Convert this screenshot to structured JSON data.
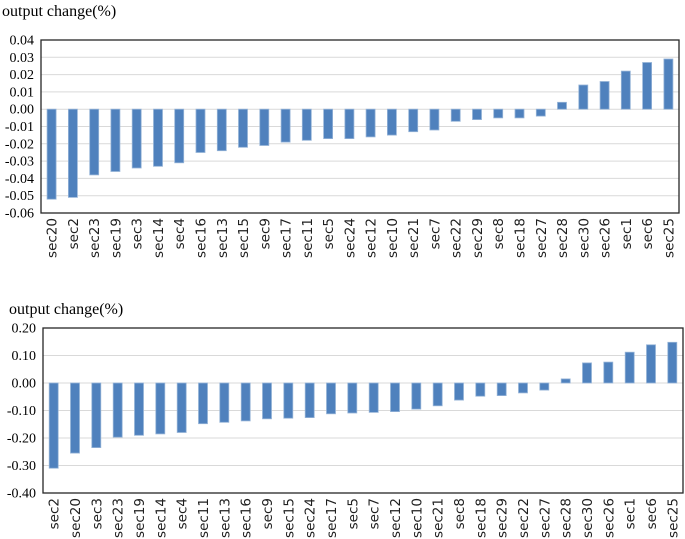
{
  "chart_data": [
    {
      "type": "bar",
      "title": "output change(%)",
      "xlabel": "",
      "ylabel": "output change(%)",
      "ylim": [
        -0.06,
        0.04
      ],
      "ytick_step": 0.01,
      "yticks": [
        "0.04",
        "0.03",
        "0.02",
        "0.01",
        "0.00",
        "-0.01",
        "-0.02",
        "-0.03",
        "-0.04",
        "-0.05",
        "-0.06"
      ],
      "grid": "on",
      "legend": "none",
      "bar_color": "#4F81BD",
      "bar_edge_color": "#95B3D7",
      "grid_color": "#D9D9D9",
      "axis_color": "#262626",
      "categories": [
        "sec20",
        "sec2",
        "sec23",
        "sec19",
        "sec3",
        "sec14",
        "sec4",
        "sec16",
        "sec13",
        "sec15",
        "sec9",
        "sec17",
        "sec11",
        "sec5",
        "sec24",
        "sec12",
        "sec10",
        "sec21",
        "sec7",
        "sec22",
        "sec29",
        "sec8",
        "sec18",
        "sec27",
        "sec28",
        "sec30",
        "sec26",
        "sec1",
        "sec6",
        "sec25"
      ],
      "values": [
        -0.052,
        -0.051,
        -0.038,
        -0.036,
        -0.034,
        -0.033,
        -0.031,
        -0.025,
        -0.024,
        -0.022,
        -0.021,
        -0.019,
        -0.018,
        -0.017,
        -0.017,
        -0.016,
        -0.015,
        -0.013,
        -0.012,
        -0.007,
        -0.006,
        -0.005,
        -0.005,
        -0.004,
        0.004,
        0.014,
        0.016,
        0.022,
        0.027,
        0.029
      ]
    },
    {
      "type": "bar",
      "title": "output change(%)",
      "xlabel": "",
      "ylabel": "output change(%)",
      "ylim": [
        -0.4,
        0.2
      ],
      "ytick_step": 0.1,
      "yticks": [
        "0.20",
        "0.10",
        "0.00",
        "-0.10",
        "-0.20",
        "-0.30",
        "-0.40"
      ],
      "grid": "on",
      "legend": "none",
      "bar_color": "#4F81BD",
      "bar_edge_color": "#95B3D7",
      "grid_color": "#D9D9D9",
      "axis_color": "#262626",
      "categories": [
        "sec2",
        "sec20",
        "sec3",
        "sec23",
        "sec19",
        "sec14",
        "sec4",
        "sec11",
        "sec13",
        "sec16",
        "sec9",
        "sec15",
        "sec24",
        "sec17",
        "sec5",
        "sec7",
        "sec12",
        "sec10",
        "sec21",
        "sec8",
        "sec18",
        "sec29",
        "sec22",
        "sec27",
        "sec28",
        "sec30",
        "sec26",
        "sec1",
        "sec6",
        "sec25"
      ],
      "values": [
        -0.31,
        -0.255,
        -0.235,
        -0.197,
        -0.19,
        -0.185,
        -0.18,
        -0.148,
        -0.143,
        -0.138,
        -0.13,
        -0.128,
        -0.126,
        -0.112,
        -0.109,
        -0.107,
        -0.104,
        -0.095,
        -0.083,
        -0.062,
        -0.048,
        -0.046,
        -0.036,
        -0.026,
        0.015,
        0.073,
        0.076,
        0.112,
        0.139,
        0.148
      ]
    }
  ]
}
